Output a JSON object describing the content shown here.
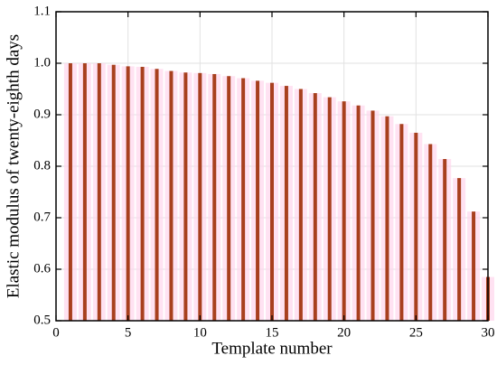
{
  "chart_data": {
    "type": "bar",
    "xlabel": "Template number",
    "ylabel": "Elastic modulus of twenty-eighth days",
    "x": [
      1,
      2,
      3,
      4,
      5,
      6,
      7,
      8,
      9,
      10,
      11,
      12,
      13,
      14,
      15,
      16,
      17,
      18,
      19,
      20,
      21,
      22,
      23,
      24,
      25,
      26,
      27,
      28,
      29,
      30
    ],
    "values": [
      1.0,
      1.0,
      1.0,
      0.997,
      0.994,
      0.993,
      0.989,
      0.985,
      0.982,
      0.981,
      0.979,
      0.975,
      0.971,
      0.966,
      0.962,
      0.956,
      0.95,
      0.942,
      0.934,
      0.926,
      0.918,
      0.908,
      0.897,
      0.882,
      0.865,
      0.843,
      0.814,
      0.777,
      0.712,
      0.585
    ],
    "color": "#a8401e",
    "xlim": [
      0,
      30
    ],
    "xticks": [
      0,
      5,
      10,
      15,
      20,
      25,
      30
    ],
    "ylim": [
      0.5,
      1.1
    ],
    "yticks": [
      0.5,
      0.6,
      0.7,
      0.8,
      0.9,
      {
        "value": 1.0,
        "label": "1.0"
      },
      1.1
    ],
    "grid": true
  }
}
